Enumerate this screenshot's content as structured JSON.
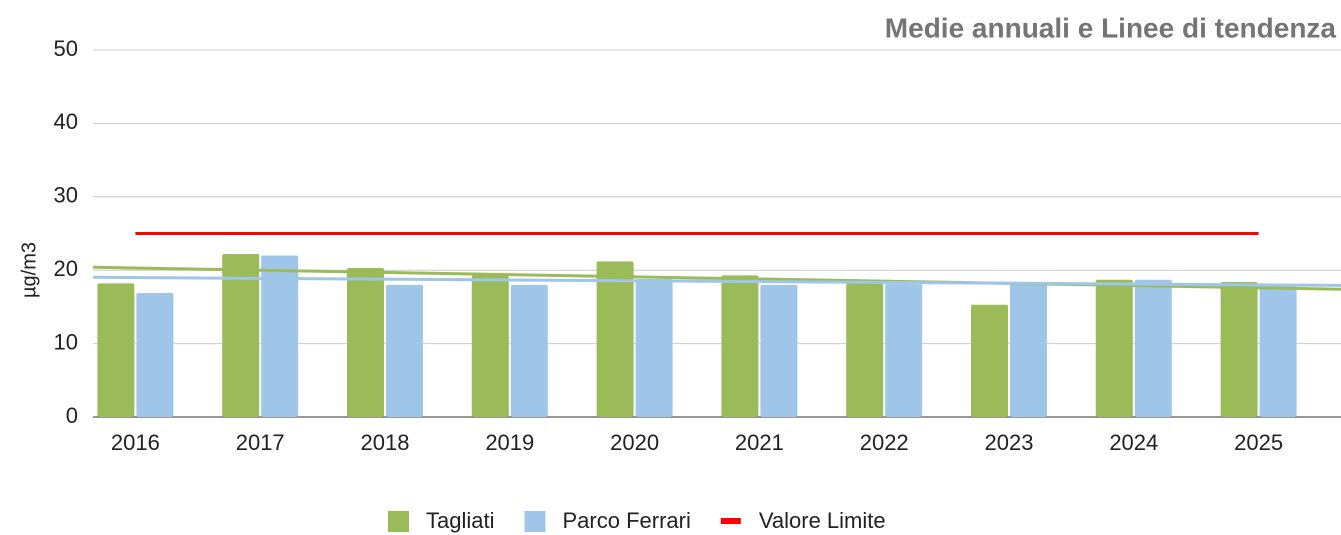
{
  "chart_data": {
    "type": "bar",
    "title": "Medie annuali e Linee di tendenza",
    "y_label": "µg/m3",
    "categories": [
      "2016",
      "2017",
      "2018",
      "2019",
      "2020",
      "2021",
      "2022",
      "2023",
      "2024",
      "2025"
    ],
    "series": [
      {
        "name": "Tagliati",
        "color": "#9bbb59",
        "values": [
          18.2,
          22.2,
          20.3,
          19.3,
          21.2,
          19.3,
          18.2,
          15.3,
          18.7,
          18.4
        ]
      },
      {
        "name": "Parco Ferrari",
        "color": "#9fc5e8",
        "values": [
          16.9,
          22.0,
          18.0,
          18.0,
          18.8,
          18.0,
          18.1,
          18.4,
          18.7,
          18.1
        ]
      },
      {
        "name": "Valore Limite",
        "color": "#ff0000",
        "type": "line",
        "values": [
          25,
          25,
          25,
          25,
          25,
          25,
          25,
          25,
          25,
          25
        ]
      }
    ],
    "trend_lines": [
      {
        "color": "#9bbb59",
        "values": [
          20.3,
          17.6
        ]
      },
      {
        "color": "#9fc5e8",
        "values": [
          19.0,
          18.0
        ]
      }
    ],
    "ylim": [
      0,
      50
    ],
    "yticks": [
      0,
      10,
      20,
      30,
      40,
      50
    ],
    "grid": true,
    "legend": "bottom"
  }
}
